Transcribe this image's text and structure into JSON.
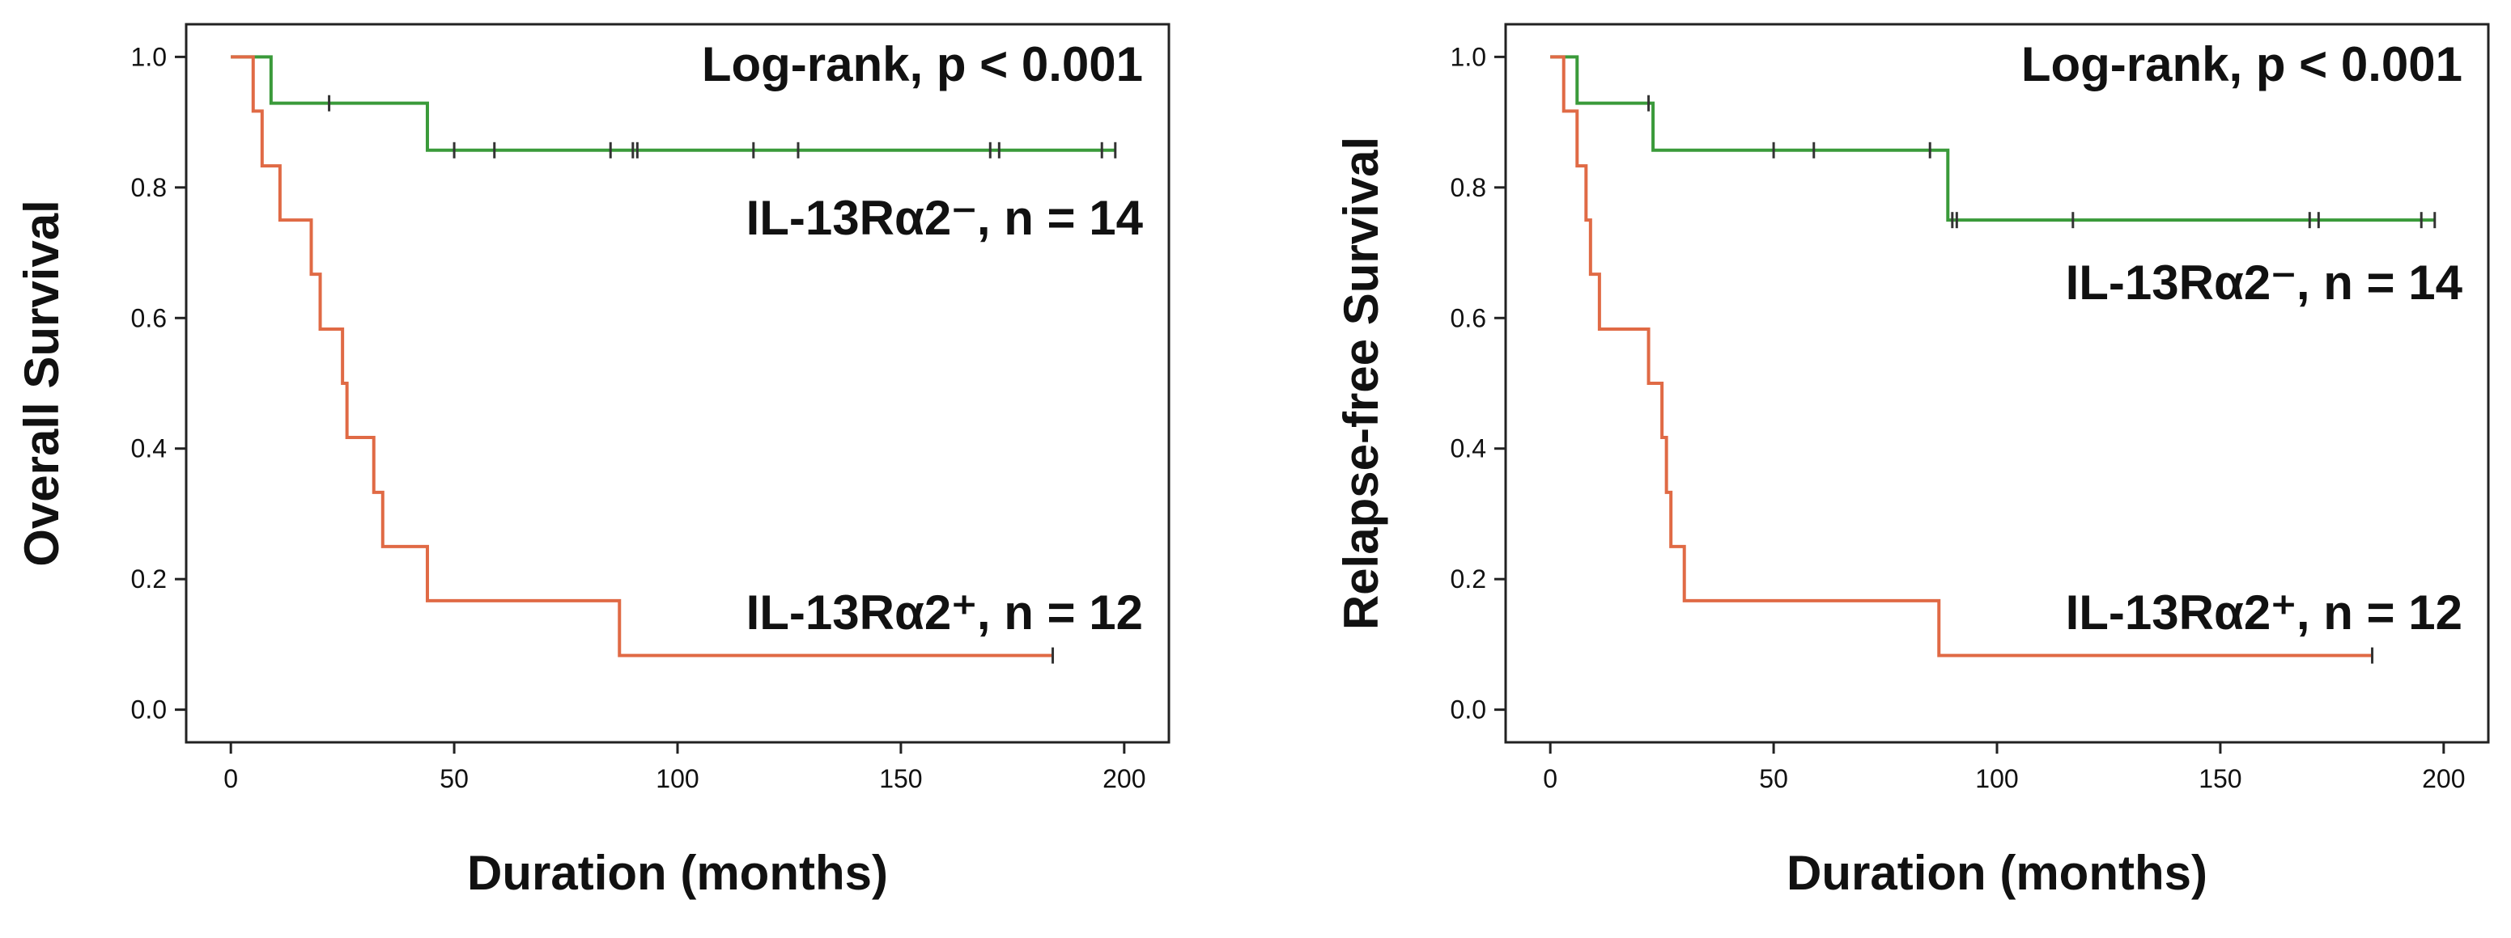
{
  "chart_data": [
    {
      "type": "line",
      "subtype": "kaplan-meier",
      "title": "",
      "xlabel": "Duration (months)",
      "ylabel": "Overall Survival",
      "xlim": [
        -10,
        210
      ],
      "ylim": [
        -0.05,
        1.05
      ],
      "xticks": [
        0,
        50,
        100,
        150,
        200
      ],
      "yticks": [
        "0.0",
        "0.2",
        "0.4",
        "0.6",
        "0.8",
        "1.0"
      ],
      "grid": false,
      "annotation": "Log-rank, p < 0.001",
      "series": [
        {
          "name": "IL-13Rα2⁻, n = 14",
          "color": "#3a9a3a",
          "steps": [
            [
              0,
              1.0
            ],
            [
              9,
              0.929
            ],
            [
              44,
              0.857
            ]
          ],
          "end_x": 198,
          "censored": [
            [
              22,
              0.929
            ],
            [
              50,
              0.857
            ],
            [
              59,
              0.857
            ],
            [
              85,
              0.857
            ],
            [
              90,
              0.857
            ],
            [
              91,
              0.857
            ],
            [
              117,
              0.857
            ],
            [
              127,
              0.857
            ],
            [
              170,
              0.857
            ],
            [
              172,
              0.857
            ],
            [
              195,
              0.857
            ],
            [
              198,
              0.857
            ]
          ]
        },
        {
          "name": "IL-13Rα2⁺, n = 12",
          "color": "#e06a45",
          "steps": [
            [
              0,
              1.0
            ],
            [
              5,
              0.917
            ],
            [
              7,
              0.833
            ],
            [
              11,
              0.75
            ],
            [
              18,
              0.667
            ],
            [
              20,
              0.583
            ],
            [
              25,
              0.5
            ],
            [
              26,
              0.417
            ],
            [
              32,
              0.333
            ],
            [
              34,
              0.25
            ],
            [
              44,
              0.167
            ],
            [
              87,
              0.083
            ]
          ],
          "end_x": 184,
          "censored": [
            [
              184,
              0.083
            ]
          ]
        }
      ]
    },
    {
      "type": "line",
      "subtype": "kaplan-meier",
      "title": "",
      "xlabel": "Duration (months)",
      "ylabel": "Relapse-free Survival",
      "xlim": [
        -10,
        210
      ],
      "ylim": [
        -0.05,
        1.05
      ],
      "xticks": [
        0,
        50,
        100,
        150,
        200
      ],
      "yticks": [
        "0.0",
        "0.2",
        "0.4",
        "0.6",
        "0.8",
        "1.0"
      ],
      "grid": false,
      "annotation": "Log-rank, p < 0.001",
      "series": [
        {
          "name": "IL-13Rα2⁻, n = 14",
          "color": "#3a9a3a",
          "steps": [
            [
              0,
              1.0
            ],
            [
              6,
              0.929
            ],
            [
              23,
              0.857
            ],
            [
              89,
              0.75
            ]
          ],
          "end_x": 198,
          "censored": [
            [
              22,
              0.929
            ],
            [
              50,
              0.857
            ],
            [
              59,
              0.857
            ],
            [
              85,
              0.857
            ],
            [
              90,
              0.75
            ],
            [
              91,
              0.75
            ],
            [
              117,
              0.75
            ],
            [
              170,
              0.75
            ],
            [
              172,
              0.75
            ],
            [
              195,
              0.75
            ],
            [
              198,
              0.75
            ]
          ]
        },
        {
          "name": "IL-13Rα2⁺, n = 12",
          "color": "#e06a45",
          "steps": [
            [
              0,
              1.0
            ],
            [
              3,
              0.917
            ],
            [
              6,
              0.833
            ],
            [
              8,
              0.75
            ],
            [
              9,
              0.667
            ],
            [
              11,
              0.583
            ],
            [
              22,
              0.5
            ],
            [
              25,
              0.417
            ],
            [
              26,
              0.333
            ],
            [
              27,
              0.25
            ],
            [
              30,
              0.167
            ],
            [
              87,
              0.083
            ]
          ],
          "end_x": 184,
          "censored": [
            [
              184,
              0.083
            ]
          ]
        }
      ]
    }
  ]
}
